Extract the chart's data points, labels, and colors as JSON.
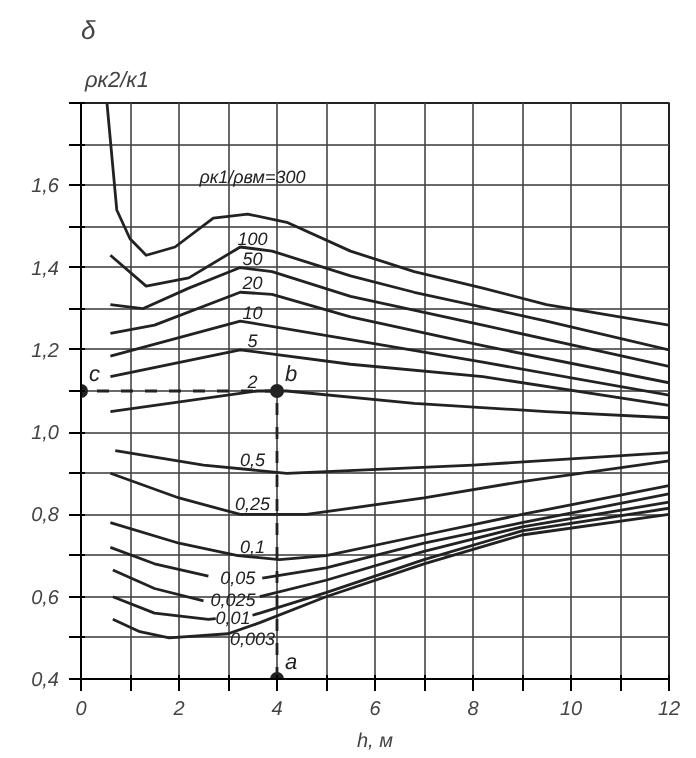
{
  "chart_data": {
    "type": "line",
    "title": "δ",
    "ylabel": "ρк2/к1",
    "xlabel": "h, м",
    "xlim": [
      0,
      12
    ],
    "ylim": [
      0.4,
      1.8
    ],
    "xticks": [
      0,
      {
        "value": 1,
        "label": null
      },
      2,
      {
        "value": 3,
        "label": null
      },
      4,
      {
        "value": 5,
        "label": null
      },
      6,
      {
        "value": 7,
        "label": null
      },
      8,
      {
        "value": 9,
        "label": null
      },
      10,
      {
        "value": 11,
        "label": null
      },
      12
    ],
    "yticks": [
      {
        "value": 0.4,
        "label": "0,4"
      },
      {
        "value": 0.5,
        "label": null
      },
      {
        "value": 0.6,
        "label": "0,6"
      },
      {
        "value": 0.7,
        "label": null
      },
      {
        "value": 0.8,
        "label": "0,8"
      },
      {
        "value": 0.9,
        "label": null
      },
      {
        "value": 1.0,
        "label": "1,0"
      },
      {
        "value": 1.1,
        "label": null
      },
      {
        "value": 1.2,
        "label": "1,2"
      },
      {
        "value": 1.3,
        "label": null
      },
      {
        "value": 1.4,
        "label": "1,4"
      },
      {
        "value": 1.5,
        "label": null
      },
      {
        "value": 1.6,
        "label": "1,6"
      },
      {
        "value": 1.7,
        "label": null
      },
      {
        "value": 1.8,
        "label": null
      }
    ],
    "grid": true,
    "marker": "none",
    "line_style": "solid",
    "annotations": [
      "a",
      "b",
      "c"
    ],
    "series": [
      {
        "name": "ρк1/ρвм=300",
        "color": "#222222",
        "x": [
          0.53,
          0.73,
          1.0,
          1.33,
          1.92,
          2.7,
          3.4,
          4.2,
          5.5,
          6.8,
          8.2,
          9.5,
          12
        ],
        "values": [
          1.8,
          1.54,
          1.47,
          1.43,
          1.45,
          1.52,
          1.53,
          1.51,
          1.44,
          1.39,
          1.35,
          1.31,
          1.26
        ]
      },
      {
        "name": "100",
        "color": "#222222",
        "x": [
          0.6,
          1.33,
          2.2,
          3.25,
          3.9,
          5.5,
          6.8,
          9.5,
          12
        ],
        "values": [
          1.43,
          1.355,
          1.375,
          1.45,
          1.44,
          1.38,
          1.34,
          1.27,
          1.2
        ]
      },
      {
        "name": "50",
        "color": "#222222",
        "x": [
          0.6,
          1.26,
          2.2,
          3.25,
          3.9,
          5.5,
          8.2,
          12
        ],
        "values": [
          1.31,
          1.3,
          1.35,
          1.4,
          1.39,
          1.33,
          1.26,
          1.16
        ]
      },
      {
        "name": "20",
        "color": "#222222",
        "x": [
          0.6,
          1.5,
          3.25,
          3.9,
          5.5,
          8.2,
          12
        ],
        "values": [
          1.24,
          1.26,
          1.34,
          1.335,
          1.28,
          1.21,
          1.12
        ]
      },
      {
        "name": "10",
        "color": "#222222",
        "x": [
          0.6,
          3.25,
          5.5,
          8.2,
          12
        ],
        "values": [
          1.185,
          1.27,
          1.225,
          1.17,
          1.09
        ]
      },
      {
        "name": "5",
        "color": "#222222",
        "x": [
          0.6,
          3.25,
          5.5,
          8.2,
          12
        ],
        "values": [
          1.135,
          1.2,
          1.165,
          1.135,
          1.065
        ]
      },
      {
        "name": "2",
        "color": "#222222",
        "x": [
          0.6,
          3.6,
          4.2,
          6.8,
          9.5,
          12
        ],
        "values": [
          1.05,
          1.1,
          1.1,
          1.07,
          1.05,
          1.035
        ]
      },
      {
        "name": "0,5",
        "color": "#222222",
        "x": [
          0.7,
          2.5,
          4.2,
          8,
          12
        ],
        "values": [
          0.955,
          0.92,
          0.9,
          0.92,
          0.95
        ]
      },
      {
        "name": "0,25",
        "color": "#222222",
        "x": [
          0.6,
          2,
          3.25,
          4.6,
          7,
          9,
          12
        ],
        "values": [
          0.9,
          0.84,
          0.8,
          0.8,
          0.84,
          0.88,
          0.93
        ]
      },
      {
        "name": "0,1",
        "color": "#222222",
        "x": [
          0.6,
          2,
          3.2,
          4.05,
          5,
          7,
          9,
          12
        ],
        "values": [
          0.78,
          0.73,
          0.7,
          0.69,
          0.7,
          0.75,
          0.8,
          0.87
        ]
      },
      {
        "name": "0,05",
        "color": "#222222",
        "x": [
          0.6,
          1.5,
          2.6,
          3.2,
          3.7,
          5,
          7,
          9,
          12
        ],
        "values": [
          0.72,
          0.68,
          0.65,
          null,
          0.645,
          0.67,
          0.73,
          0.78,
          0.85
        ]
      },
      {
        "name": "0,025",
        "color": "#222222",
        "x": [
          0.65,
          1.5,
          2.5,
          3.1,
          3.65,
          5,
          7,
          9,
          12
        ],
        "values": [
          0.665,
          0.62,
          0.59,
          null,
          0.6,
          0.64,
          0.71,
          0.77,
          0.83
        ]
      },
      {
        "name": "0,01",
        "color": "#222222",
        "x": [
          0.65,
          1.5,
          2.6,
          2.75,
          3.1,
          3.5,
          3.65,
          5,
          7,
          9,
          12
        ],
        "values": [
          0.6,
          0.56,
          0.545,
          0.547,
          null,
          0.555,
          0.56,
          0.61,
          0.69,
          0.76,
          0.815
        ]
      },
      {
        "name": "0,003",
        "color": "#222222",
        "x": [
          0.65,
          1.2,
          1.8,
          3,
          3.65,
          5,
          7,
          9,
          12
        ],
        "values": [
          0.545,
          0.515,
          0.5,
          0.51,
          0.537,
          0.6,
          0.68,
          0.75,
          0.8
        ]
      },
      {
        "color": "#222222",
        "type": "line",
        "line_style": "dashed",
        "marker": "circle",
        "x": [
          4,
          4,
          0
        ],
        "values": [
          0.4,
          1.1,
          1.1
        ]
      }
    ]
  }
}
